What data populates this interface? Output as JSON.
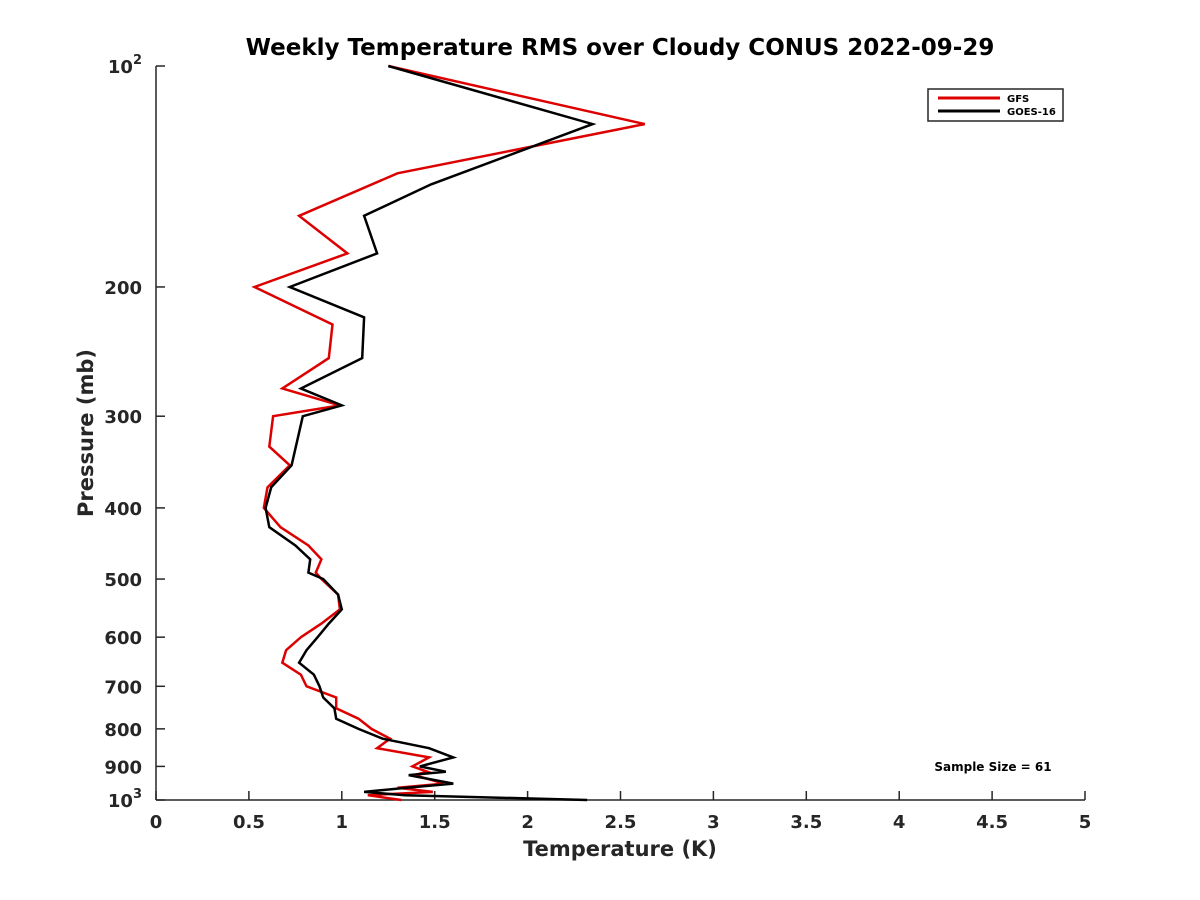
{
  "chart_data": {
    "type": "line",
    "title": "Weekly Temperature RMS over Cloudy CONUS 2022-09-29",
    "xlabel": "Temperature (K)",
    "ylabel": "Pressure (mb)",
    "xlim": [
      0,
      5
    ],
    "ylim": [
      100,
      1000
    ],
    "y_scale": "log",
    "y_reversed": true,
    "grid": false,
    "legend_position": "top-right",
    "x_ticks": [
      0,
      0.5,
      1,
      1.5,
      2,
      2.5,
      3,
      3.5,
      4,
      4.5,
      5
    ],
    "x_tick_labels": [
      "0",
      "0.5",
      "1",
      "1.5",
      "2",
      "2.5",
      "3",
      "3.5",
      "4",
      "4.5",
      "5"
    ],
    "y_ticks": [
      100,
      200,
      300,
      400,
      500,
      600,
      700,
      800,
      900,
      1000
    ],
    "y_tick_labels": [
      {
        "base": "10",
        "exp": "2"
      },
      {
        "base": "200",
        "exp": ""
      },
      {
        "base": "300",
        "exp": ""
      },
      {
        "base": "400",
        "exp": ""
      },
      {
        "base": "500",
        "exp": ""
      },
      {
        "base": "600",
        "exp": ""
      },
      {
        "base": "700",
        "exp": ""
      },
      {
        "base": "800",
        "exp": ""
      },
      {
        "base": "900",
        "exp": ""
      },
      {
        "base": "10",
        "exp": "3"
      }
    ],
    "annotation": "Sample Size = 61",
    "series": [
      {
        "name": "GFS",
        "color": "#dd0000",
        "pressure": [
          100,
          120,
          140,
          160,
          180,
          200,
          225,
          250,
          275,
          290,
          300,
          330,
          350,
          375,
          400,
          425,
          450,
          470,
          490,
          500,
          525,
          550,
          575,
          600,
          625,
          650,
          675,
          700,
          725,
          750,
          775,
          800,
          825,
          850,
          875,
          900,
          915,
          925,
          950,
          962,
          975,
          985,
          1000
        ],
        "values": [
          1.25,
          2.63,
          1.3,
          0.77,
          1.03,
          0.53,
          0.95,
          0.93,
          0.68,
          0.99,
          0.63,
          0.61,
          0.72,
          0.6,
          0.58,
          0.67,
          0.82,
          0.89,
          0.86,
          0.89,
          0.98,
          0.99,
          0.89,
          0.78,
          0.7,
          0.68,
          0.78,
          0.81,
          0.97,
          0.97,
          1.09,
          1.16,
          1.26,
          1.19,
          1.47,
          1.38,
          1.46,
          1.39,
          1.55,
          1.3,
          1.49,
          1.14,
          1.32
        ]
      },
      {
        "name": "GOES-16",
        "color": "#000000",
        "pressure": [
          100,
          120,
          145,
          160,
          180,
          200,
          220,
          250,
          275,
          290,
          300,
          350,
          375,
          400,
          425,
          450,
          470,
          490,
          500,
          525,
          550,
          575,
          600,
          625,
          650,
          675,
          700,
          725,
          750,
          775,
          800,
          825,
          850,
          875,
          900,
          915,
          925,
          950,
          962,
          975,
          985,
          1000
        ],
        "values": [
          1.25,
          2.35,
          1.48,
          1.12,
          1.19,
          0.72,
          1.12,
          1.11,
          0.78,
          1.0,
          0.79,
          0.73,
          0.62,
          0.59,
          0.61,
          0.75,
          0.83,
          0.82,
          0.9,
          0.98,
          1.0,
          0.93,
          0.87,
          0.81,
          0.77,
          0.85,
          0.88,
          0.9,
          0.96,
          0.97,
          1.09,
          1.22,
          1.47,
          1.6,
          1.42,
          1.56,
          1.36,
          1.6,
          1.35,
          1.12,
          1.34,
          2.32
        ]
      }
    ]
  }
}
